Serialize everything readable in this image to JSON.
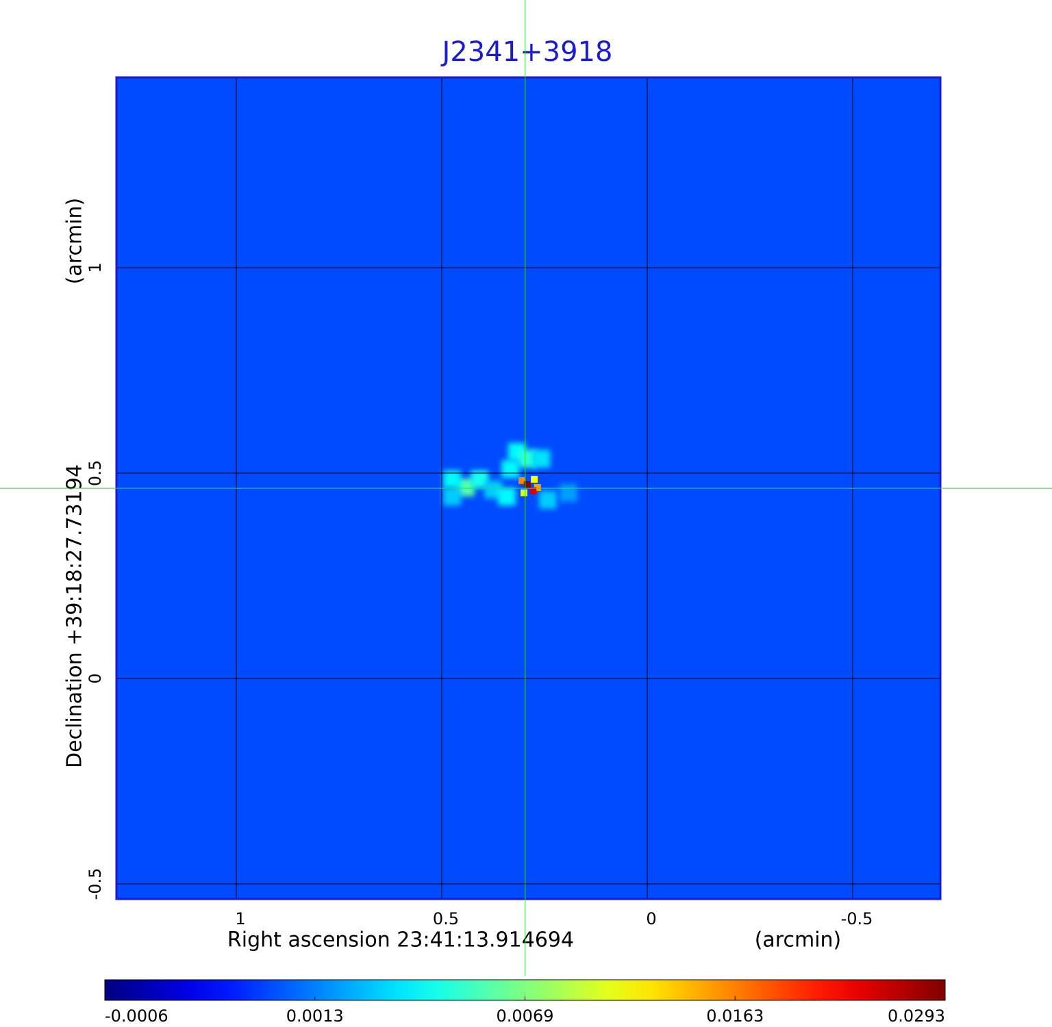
{
  "chart_data": {
    "type": "image",
    "title": "J2341+3918",
    "x_label": "Right ascension  23:41:13.914694",
    "x_unit": "(arcmin)",
    "y_label": "Declination  +39:18:27.73194",
    "y_unit": "(arcmin)",
    "xlim": [
      1.2917,
      -0.7133
    ],
    "ylim": [
      -0.5367,
      1.4633
    ],
    "xticks": [
      1.0,
      0.5,
      0.0,
      -0.5
    ],
    "yticks": [
      -0.5,
      0.0,
      0.5,
      1.0
    ],
    "grid": true,
    "crosshair": [
      0.297,
      0.463
    ],
    "background_value": 0.0009,
    "pixels": {
      "x": [
        0.442,
        0.475,
        0.408,
        0.475,
        0.375,
        0.317,
        0.292,
        0.258,
        0.333,
        0.242,
        0.192,
        0.342,
        0.305,
        0.275,
        0.3,
        0.267,
        0.278,
        0.292
      ],
      "y": [
        0.465,
        0.485,
        0.485,
        0.443,
        0.46,
        0.552,
        0.535,
        0.535,
        0.51,
        0.435,
        0.452,
        0.443,
        0.482,
        0.485,
        0.452,
        0.465,
        0.457,
        0.472
      ],
      "values": [
        0.006,
        0.004,
        0.0045,
        0.003,
        0.003,
        0.004,
        0.005,
        0.0035,
        0.004,
        0.003,
        0.002,
        0.004,
        0.016,
        0.011,
        0.01,
        0.015,
        0.025,
        0.0293
      ]
    },
    "colorbar_ticks": [
      -0.0006,
      0.0013,
      0.0069,
      0.0163,
      0.0293
    ]
  }
}
